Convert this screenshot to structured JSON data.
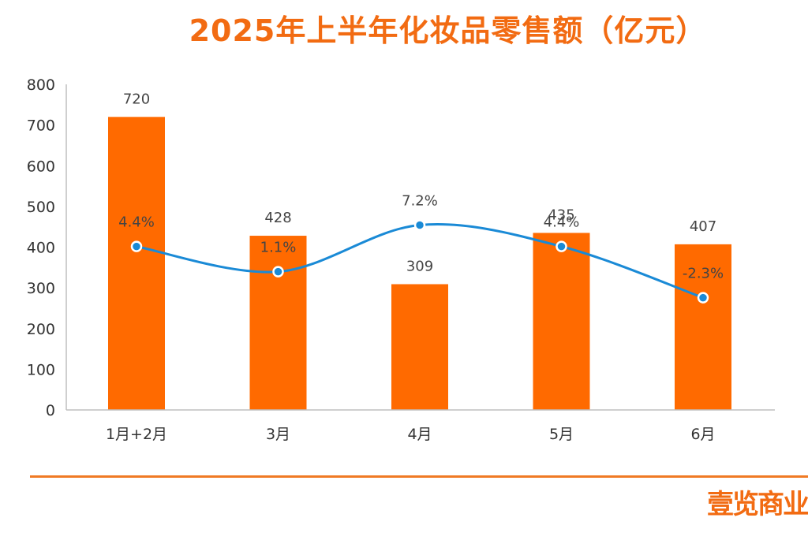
{
  "title": "2025年上半年化妆品零售额（亿元）",
  "logo_text": "壹览商业",
  "colors": {
    "bar": "#ff6a00",
    "line": "#1a8ad6",
    "title": "#f26b12"
  },
  "chart_data": {
    "type": "bar",
    "title": "2025年上半年化妆品零售额（亿元）",
    "categories": [
      "1月+2月",
      "3月",
      "4月",
      "5月",
      "6月"
    ],
    "ylim": [
      0,
      800
    ],
    "yticks": [
      0,
      100,
      200,
      300,
      400,
      500,
      600,
      700,
      800
    ],
    "grid": false,
    "series": [
      {
        "type": "bar",
        "values": [
          720,
          428,
          309,
          435,
          407
        ],
        "value_labels": [
          "720",
          "428",
          "309",
          "435",
          "407"
        ]
      },
      {
        "type": "line",
        "values": [
          4.4,
          1.1,
          7.2,
          4.4,
          -2.3
        ],
        "value_labels": [
          "4.4%",
          "1.1%",
          "7.2%",
          "4.4%",
          "-2.3%"
        ]
      }
    ]
  }
}
